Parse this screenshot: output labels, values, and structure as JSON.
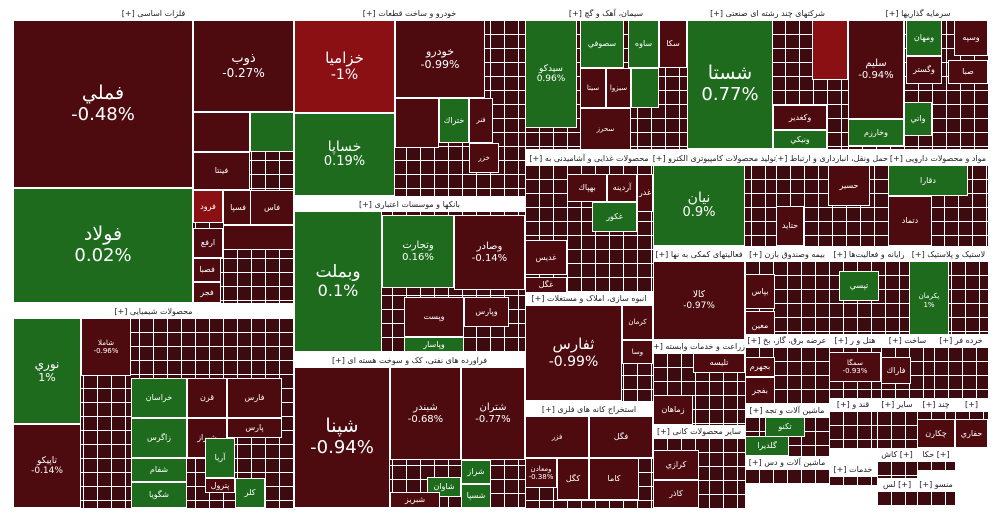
{
  "chart_data": {
    "type": "treemap",
    "colors": {
      "up": "#1e6b1e",
      "down": "#4d0a0f",
      "down_strong": "#8a1014",
      "flat": "#3d0a10"
    },
    "sectors": [
      {
        "name": "فلزات اساسی [+]",
        "items": [
          {
            "symbol": "فملي",
            "change": "-0.48%",
            "dir": "down"
          },
          {
            "symbol": "فولاد",
            "change": "0.02%",
            "dir": "up"
          },
          {
            "symbol": "ذوب",
            "change": "-0.27%",
            "dir": "down"
          },
          {
            "symbol": "فينتا",
            "change": "",
            "dir": "down"
          },
          {
            "symbol": "فسپا",
            "change": "",
            "dir": "down"
          },
          {
            "symbol": "فرود",
            "change": "",
            "dir": "down_strong"
          },
          {
            "symbol": "فاس",
            "change": "",
            "dir": "down"
          },
          {
            "symbol": "ارفع",
            "change": "",
            "dir": "down"
          },
          {
            "symbol": "فصبا",
            "change": "",
            "dir": "down"
          },
          {
            "symbol": "فجر",
            "change": "",
            "dir": "down"
          },
          {
            "symbol": "",
            "change": "",
            "dir": "down"
          },
          {
            "symbol": "",
            "change": "",
            "dir": "up"
          },
          {
            "symbol": "",
            "change": "",
            "dir": "down"
          }
        ]
      },
      {
        "name": "خودرو و ساخت قطعات [+]",
        "items": [
          {
            "symbol": "خزاميا",
            "change": "-1%",
            "dir": "down_strong"
          },
          {
            "symbol": "خودرو",
            "change": "-0.99%",
            "dir": "down"
          },
          {
            "symbol": "خساپا",
            "change": "0.19%",
            "dir": "up"
          },
          {
            "symbol": "خلور",
            "change": "",
            "dir": "down"
          },
          {
            "symbol": "ختراك",
            "change": "",
            "dir": "up"
          },
          {
            "symbol": "فنر",
            "change": "",
            "dir": "down"
          },
          {
            "symbol": "خزر",
            "change": "",
            "dir": "down"
          },
          {
            "symbol": "",
            "change": "",
            "dir": "down"
          }
        ]
      },
      {
        "name": "سیمان، آهک و گچ [+]",
        "items": [
          {
            "symbol": "سيدكو",
            "change": "0.96%",
            "dir": "up"
          },
          {
            "symbol": "سصوفي",
            "change": "",
            "dir": "up"
          },
          {
            "symbol": "ساوه",
            "change": "",
            "dir": "up"
          },
          {
            "symbol": "سكا",
            "change": "",
            "dir": "down"
          },
          {
            "symbol": "سيتا",
            "change": "",
            "dir": "down"
          },
          {
            "symbol": "سيزوا",
            "change": "",
            "dir": "down"
          },
          {
            "symbol": "سحرز",
            "change": "",
            "dir": "down"
          },
          {
            "symbol": "",
            "change": "",
            "dir": "up"
          }
        ]
      },
      {
        "name": "شرکتهای چند رشته ای صنعتی [+]",
        "items": [
          {
            "symbol": "شستا",
            "change": "0.77%",
            "dir": "up"
          },
          {
            "symbol": "وكغدير",
            "change": "",
            "dir": "down"
          },
          {
            "symbol": "ونيكي",
            "change": "",
            "dir": "up"
          },
          {
            "symbol": "",
            "change": "",
            "dir": "down_strong"
          }
        ]
      },
      {
        "name": "سرمایه گذاریها [+]",
        "items": [
          {
            "symbol": "سليم",
            "change": "-0.94%",
            "dir": "down"
          },
          {
            "symbol": "ومهان",
            "change": "",
            "dir": "up"
          },
          {
            "symbol": "وسپه",
            "change": "",
            "dir": "down"
          },
          {
            "symbol": "وگستر",
            "change": "",
            "dir": "down"
          },
          {
            "symbol": "صبا",
            "change": "",
            "dir": "down"
          },
          {
            "symbol": "وخارزم",
            "change": "",
            "dir": "up"
          },
          {
            "symbol": "واتي",
            "change": "",
            "dir": "up"
          }
        ]
      },
      {
        "name": "بانکها و موسسات اعتباری [+]",
        "items": [
          {
            "symbol": "وبملت",
            "change": "0.1%",
            "dir": "up"
          },
          {
            "symbol": "وتجارت",
            "change": "0.16%",
            "dir": "up"
          },
          {
            "symbol": "وصادر",
            "change": "-0.14%",
            "dir": "down"
          },
          {
            "symbol": "وپست",
            "change": "",
            "dir": "down"
          },
          {
            "symbol": "وپارس",
            "change": "",
            "dir": "down"
          },
          {
            "symbol": "وپاسار",
            "change": "",
            "dir": "up"
          }
        ]
      },
      {
        "name": "محصولات غذایی و آشامیدنی به [+]",
        "items": [
          {
            "symbol": "بهپاك",
            "change": "",
            "dir": "down"
          },
          {
            "symbol": "آردينه",
            "change": "",
            "dir": "down"
          },
          {
            "symbol": "غدر",
            "change": "",
            "dir": "down"
          },
          {
            "symbol": "غكور",
            "change": "",
            "dir": "up"
          },
          {
            "symbol": "غدیس",
            "change": "",
            "dir": "down"
          },
          {
            "symbol": "غگل",
            "change": "",
            "dir": "down"
          }
        ]
      },
      {
        "name": "تولید محصولات کامپیوتری الکترو [+]",
        "items": [
          {
            "symbol": "نيان",
            "change": "0.9%",
            "dir": "up"
          }
        ]
      },
      {
        "name": "حمل ونقل، انبارداری و ارتباط [+]",
        "items": [
          {
            "symbol": "حسير",
            "change": "",
            "dir": "down"
          },
          {
            "symbol": "حتايد",
            "change": "",
            "dir": "down"
          }
        ]
      },
      {
        "name": "مواد و محصولات دارویی [+]",
        "items": [
          {
            "symbol": "دقارا",
            "change": "",
            "dir": "up"
          },
          {
            "symbol": "دتماد",
            "change": "",
            "dir": "down"
          }
        ]
      },
      {
        "name": "محصولات شیمیایی [+]",
        "items": [
          {
            "symbol": "نوري",
            "change": "1%",
            "dir": "up"
          },
          {
            "symbol": "تاپيكو",
            "change": "-0.14%",
            "dir": "down"
          },
          {
            "symbol": "شاملا",
            "change": "-0.96%",
            "dir": "down"
          },
          {
            "symbol": "خراسان",
            "change": "",
            "dir": "up"
          },
          {
            "symbol": "فارس",
            "change": "",
            "dir": "down"
          },
          {
            "symbol": "قرن",
            "change": "",
            "dir": "down"
          },
          {
            "symbol": "زاگرس",
            "change": "",
            "dir": "up"
          },
          {
            "symbol": "شفام",
            "change": "",
            "dir": "up"
          },
          {
            "symbol": "شگويا",
            "change": "",
            "dir": "up"
          },
          {
            "symbol": "شيراز",
            "change": "",
            "dir": "down"
          },
          {
            "symbol": "پارس",
            "change": "",
            "dir": "down"
          },
          {
            "symbol": "آريا",
            "change": "",
            "dir": "up"
          },
          {
            "symbol": "پترول",
            "change": "",
            "dir": "down"
          },
          {
            "symbol": "كلر",
            "change": "",
            "dir": "up"
          }
        ]
      },
      {
        "name": "فراورده های نفتی، کک و سوخت هسته ای [+]",
        "items": [
          {
            "symbol": "شپنا",
            "change": "-0.94%",
            "dir": "down"
          },
          {
            "symbol": "شبندر",
            "change": "-0.68%",
            "dir": "down"
          },
          {
            "symbol": "شتران",
            "change": "-0.77%",
            "dir": "down"
          },
          {
            "symbol": "شراز",
            "change": "",
            "dir": "up"
          },
          {
            "symbol": "شاوان",
            "change": "",
            "dir": "up"
          },
          {
            "symbol": "شبريز",
            "change": "",
            "dir": "down"
          },
          {
            "symbol": "شسپا",
            "change": "",
            "dir": "up"
          }
        ]
      },
      {
        "name": "انبوه سازی، املاک و مستغلات [+]",
        "items": [
          {
            "symbol": "ثفارس",
            "change": "-0.99%",
            "dir": "down"
          },
          {
            "symbol": "كرمان",
            "change": "",
            "dir": "down"
          },
          {
            "symbol": "وسا",
            "change": "",
            "dir": "down"
          }
        ]
      },
      {
        "name": "فعالیتهای کمکی به نها [+]",
        "items": [
          {
            "symbol": "كالا",
            "change": "-0.97%",
            "dir": "down"
          }
        ]
      },
      {
        "name": "بیمه وصندوق بازن [+]",
        "items": [
          {
            "symbol": "بپاس",
            "change": "",
            "dir": "down"
          },
          {
            "symbol": "معين",
            "change": "",
            "dir": "down"
          }
        ]
      },
      {
        "name": "رایانه و فعالیت‌ها [+]",
        "items": [
          {
            "symbol": "تپسي",
            "change": "",
            "dir": "up"
          }
        ]
      },
      {
        "name": "لاستیک و پلاستیک [+]",
        "items": [
          {
            "symbol": "پكرمان",
            "change": "1%",
            "dir": "up"
          }
        ]
      },
      {
        "name": "زراعت و خدمات وابسته [+]",
        "items": [
          {
            "symbol": "تليسه",
            "change": "",
            "dir": "down"
          },
          {
            "symbol": "زماهان",
            "change": "",
            "dir": "down"
          }
        ]
      },
      {
        "name": "عرضه برق، گاز، بخ [+]",
        "items": [
          {
            "symbol": "بجهرم",
            "change": "",
            "dir": "down"
          },
          {
            "symbol": "بفجر",
            "change": "",
            "dir": "down"
          }
        ]
      },
      {
        "name": "هتل و ر [+]",
        "items": [
          {
            "symbol": "سمگا",
            "change": "-0.93%",
            "dir": "down"
          }
        ]
      },
      {
        "name": "ساخت [+]",
        "items": [
          {
            "symbol": "فاراك",
            "change": "",
            "dir": "down"
          }
        ]
      },
      {
        "name": "خرده فر [+]",
        "items": []
      },
      {
        "name": "استخراج کانه های فلزی [+]",
        "items": [
          {
            "symbol": "فزر",
            "change": "",
            "dir": "down"
          },
          {
            "symbol": "فگل",
            "change": "",
            "dir": "down"
          },
          {
            "symbol": "كاما",
            "change": "",
            "dir": "down"
          },
          {
            "symbol": "ومعادن",
            "change": "-0.38%",
            "dir": "down"
          },
          {
            "symbol": "کگل",
            "change": "",
            "dir": "down"
          }
        ]
      },
      {
        "name": "سایر محصولات کانی [+]",
        "items": [
          {
            "symbol": "كرازي",
            "change": "",
            "dir": "down"
          },
          {
            "symbol": "كاذر",
            "change": "",
            "dir": "down"
          }
        ]
      },
      {
        "name": "ماشین آلات و تجه [+]",
        "items": [
          {
            "symbol": "تكنو",
            "change": "",
            "dir": "up"
          },
          {
            "symbol": "گلدیرا",
            "change": "",
            "dir": "up"
          }
        ]
      },
      {
        "name": "قند و [+]",
        "items": []
      },
      {
        "name": "سایر [+]",
        "items": []
      },
      {
        "name": "چند [+]",
        "items": [
          {
            "symbol": "چكارن",
            "change": "",
            "dir": "down"
          }
        ]
      },
      {
        "name": "[+]",
        "items": [
          {
            "symbol": "حفاري",
            "change": "",
            "dir": "down"
          }
        ]
      },
      {
        "name": "ماشین آلات و دس [+]",
        "items": []
      },
      {
        "name": "خدمات [+]",
        "items": []
      },
      {
        "name": "[+] كاش",
        "items": []
      },
      {
        "name": "[+] حكا",
        "items": []
      },
      {
        "name": "[+] لس",
        "items": []
      },
      {
        "name": "منسو [+]",
        "items": []
      },
      {
        "name": "[+] اطلا",
        "items": []
      }
    ]
  }
}
